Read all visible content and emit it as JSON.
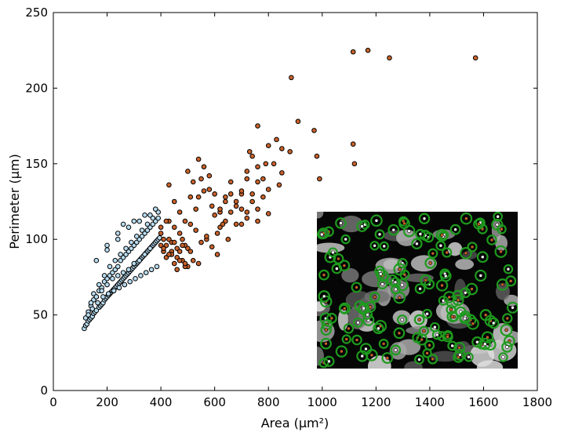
{
  "chart_data": {
    "type": "scatter",
    "title": "",
    "xlabel": "Area (μm²)",
    "ylabel": "Perimeter (μm)",
    "xlim": [
      0,
      1800
    ],
    "ylim": [
      0,
      250
    ],
    "xticks": [
      "0",
      "200",
      "400",
      "600",
      "800",
      "1000",
      "1200",
      "1400",
      "1600",
      "1800"
    ],
    "yticks": [
      "0",
      "50",
      "100",
      "150",
      "200",
      "250"
    ],
    "grid": false,
    "colors": {
      "small": "#b8dcf0",
      "large": "#c8612a",
      "edge": "#000000"
    },
    "series": [
      {
        "x": [
          115,
          120,
          125,
          130,
          135,
          140,
          145,
          150,
          155,
          160,
          170,
          175,
          180,
          185,
          190,
          195,
          200,
          205,
          210,
          215,
          220,
          225,
          230,
          235,
          240,
          245,
          250,
          255,
          260,
          265,
          270,
          275,
          280,
          285,
          290,
          295,
          300,
          305,
          310,
          315,
          320,
          325,
          330,
          335,
          340,
          345,
          350,
          355,
          360,
          365,
          370,
          375,
          380,
          385,
          390,
          395,
          120,
          130,
          140,
          150,
          160,
          170,
          180,
          190,
          200,
          210,
          220,
          230,
          240,
          250,
          260,
          270,
          280,
          290,
          300,
          310,
          320,
          330,
          340,
          350,
          360,
          370,
          380,
          390,
          150,
          170,
          190,
          210,
          230,
          250,
          270,
          290,
          310,
          330,
          350,
          370,
          390,
          200,
          240,
          280,
          320,
          360,
          380,
          140,
          160,
          180,
          200,
          220,
          240,
          260,
          280,
          300,
          320,
          340,
          360,
          160,
          200,
          240,
          260,
          300,
          340,
          130,
          145,
          165,
          185,
          205,
          225,
          245,
          265,
          285,
          305,
          325,
          345,
          365,
          385
        ],
        "y": [
          41,
          43,
          44,
          46,
          47,
          48,
          49,
          51,
          52,
          53,
          55,
          56,
          57,
          58,
          60,
          61,
          62,
          63,
          64,
          65,
          66,
          67,
          68,
          69,
          70,
          71,
          72,
          73,
          74,
          75,
          76,
          77,
          78,
          79,
          80,
          81,
          82,
          83,
          84,
          85,
          86,
          87,
          88,
          89,
          90,
          91,
          92,
          93,
          94,
          95,
          96,
          97,
          98,
          99,
          100,
          101,
          48,
          52,
          56,
          60,
          62,
          66,
          68,
          72,
          74,
          76,
          78,
          80,
          82,
          86,
          88,
          90,
          92,
          94,
          96,
          98,
          100,
          102,
          104,
          106,
          108,
          110,
          112,
          114,
          64,
          70,
          76,
          82,
          86,
          90,
          94,
          98,
          102,
          106,
          110,
          114,
          118,
          93,
          100,
          108,
          112,
          116,
          120,
          58,
          62,
          66,
          70,
          74,
          76,
          78,
          80,
          84,
          86,
          90,
          94,
          86,
          96,
          104,
          110,
          112,
          116,
          50,
          54,
          58,
          62,
          64,
          66,
          68,
          70,
          72,
          74,
          76,
          78,
          80,
          82
        ]
      },
      {
        "x": [
          1115,
          1170,
          1250,
          1570,
          885,
          910,
          970,
          1115,
          1120,
          760,
          830,
          850,
          880,
          730,
          760,
          790,
          800,
          850,
          980,
          990,
          700,
          720,
          740,
          760,
          780,
          800,
          820,
          840,
          620,
          640,
          660,
          680,
          700,
          720,
          740,
          760,
          780,
          800,
          540,
          560,
          580,
          600,
          620,
          640,
          660,
          680,
          700,
          720,
          740,
          760,
          500,
          520,
          540,
          560,
          580,
          600,
          620,
          640,
          660,
          680,
          700,
          720,
          430,
          450,
          470,
          490,
          510,
          530,
          550,
          570,
          590,
          610,
          630,
          650,
          410,
          430,
          450,
          470,
          490,
          510,
          530,
          550,
          570,
          590,
          610,
          400,
          420,
          440,
          460,
          480,
          500,
          520,
          540,
          400,
          420,
          440,
          460,
          480,
          500,
          400,
          410,
          420,
          430,
          440,
          450,
          460,
          470,
          480,
          490,
          410,
          430,
          450,
          470,
          490,
          510
        ],
        "y": [
          224,
          225,
          220,
          220,
          207,
          178,
          172,
          163,
          150,
          175,
          166,
          160,
          158,
          158,
          148,
          150,
          162,
          144,
          155,
          140,
          130,
          145,
          155,
          138,
          140,
          133,
          150,
          136,
          118,
          128,
          138,
          122,
          132,
          140,
          125,
          112,
          128,
          117,
          153,
          148,
          133,
          130,
          120,
          112,
          118,
          125,
          110,
          118,
          130,
          120,
          145,
          138,
          128,
          132,
          142,
          116,
          108,
          125,
          130,
          110,
          120,
          114,
          136,
          125,
          118,
          112,
          128,
          106,
          140,
          100,
          122,
          104,
          110,
          100,
          100,
          112,
          108,
          104,
          96,
          110,
          120,
          98,
          102,
          95,
          90,
          104,
          96,
          92,
          88,
          100,
          94,
          86,
          84,
          108,
          112,
          98,
          94,
          86,
          82,
          96,
          92,
          88,
          100,
          90,
          84,
          80,
          92,
          96,
          82,
          94,
          90,
          98,
          86,
          84,
          92
        ]
      }
    ]
  }
}
